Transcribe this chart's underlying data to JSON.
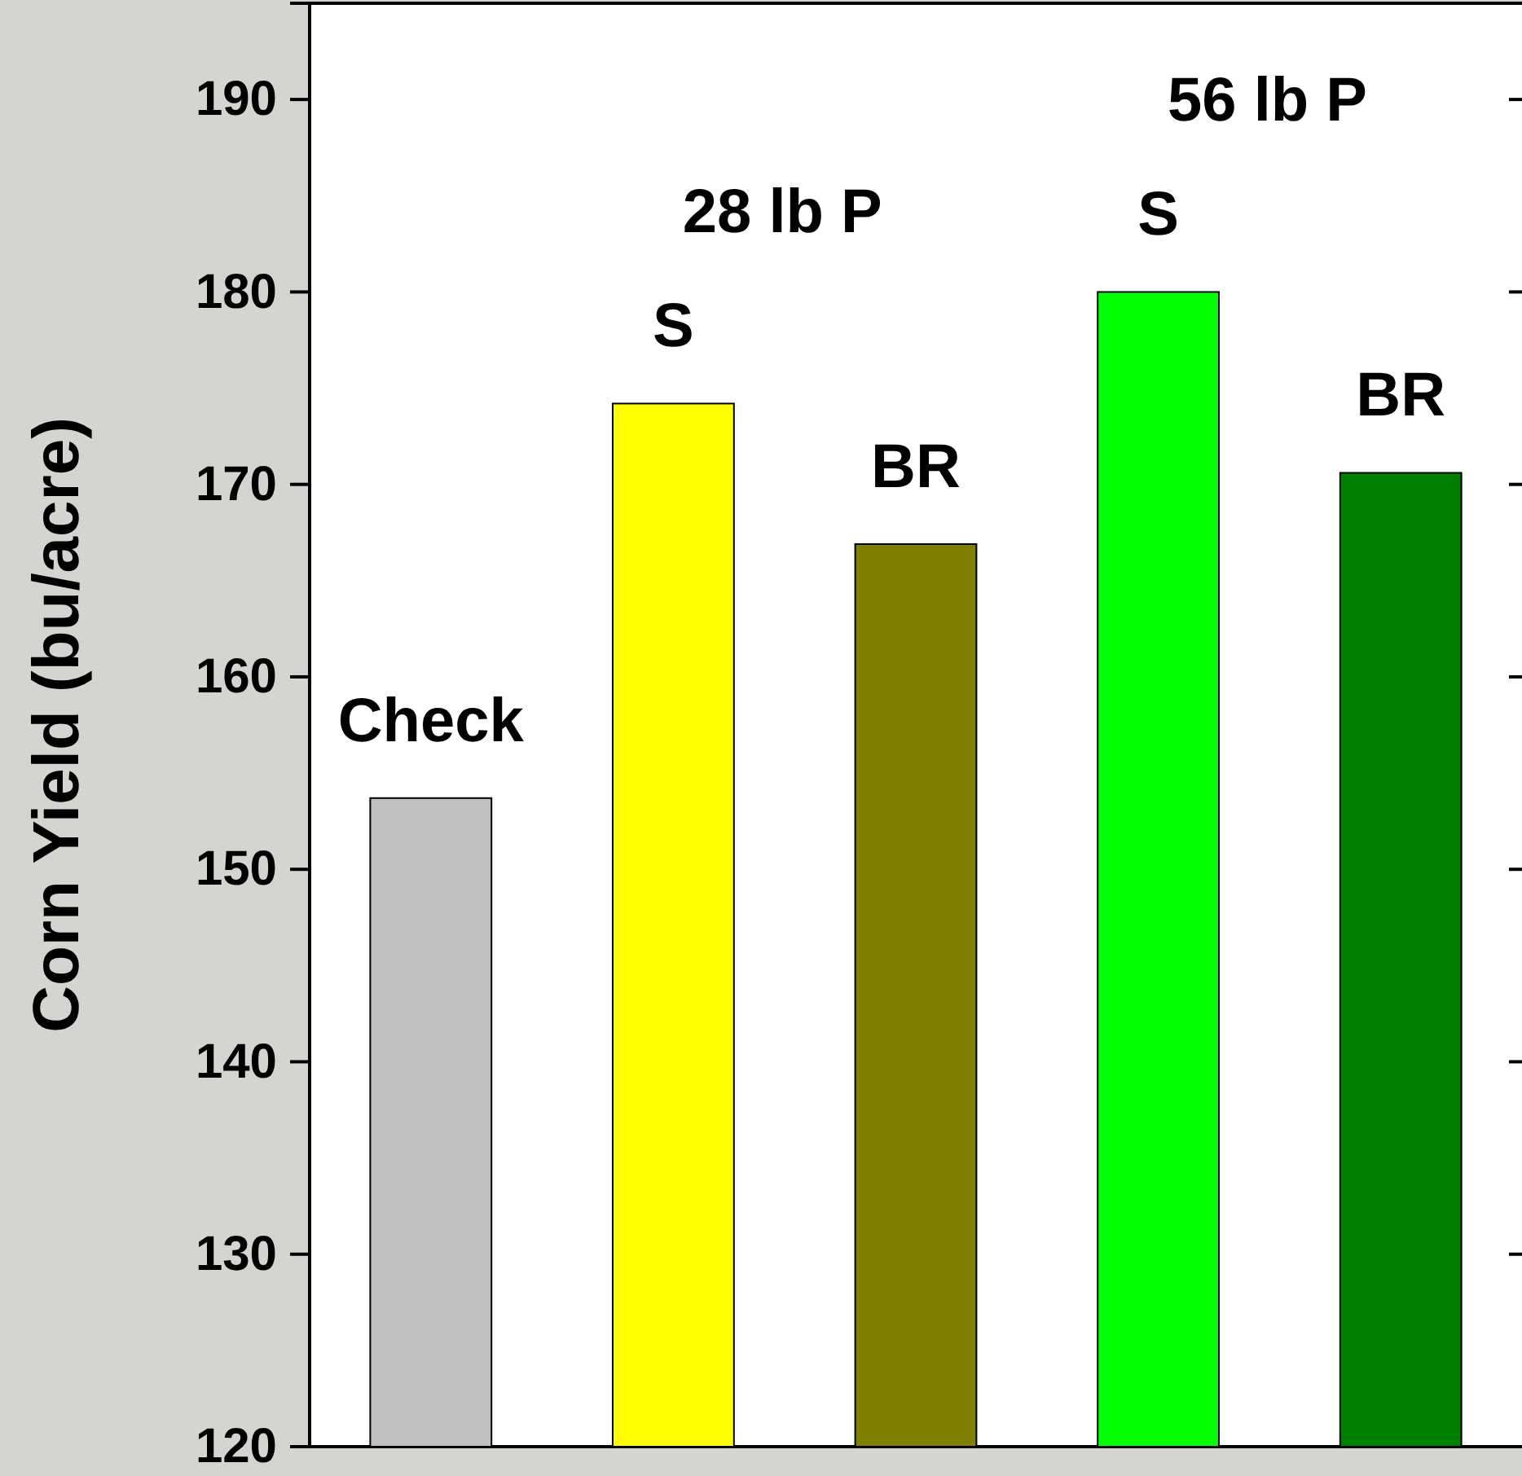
{
  "chart_data": {
    "type": "bar",
    "ylabel": "Corn Yield (bu/acre)",
    "categories": [
      null,
      null,
      null,
      null,
      null
    ],
    "values": [
      153.7,
      174.2,
      166.9,
      180.0,
      170.6
    ],
    "value_labels": [
      "Check",
      "S",
      "BR",
      "S",
      "BR"
    ],
    "colors": [
      "#c0c0c0",
      "#ffff00",
      "#808000",
      "#00ff00",
      "#008000"
    ],
    "annotations": [
      "28 lb P",
      "56 lb P"
    ],
    "ylim": [
      120,
      195
    ],
    "yticks": [
      120,
      130,
      140,
      150,
      160,
      170,
      180,
      190
    ],
    "grid": false
  }
}
